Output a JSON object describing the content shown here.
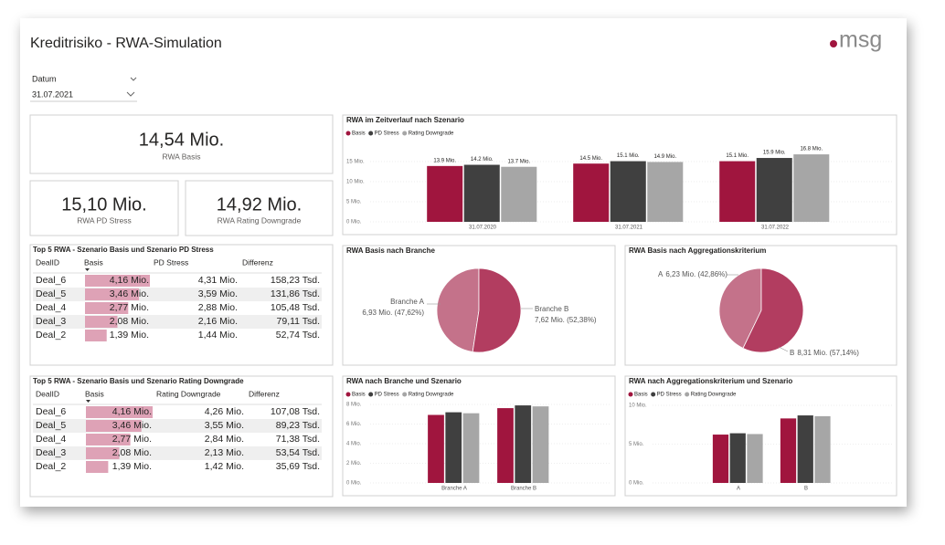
{
  "header": {
    "title": "Kreditrisiko - RWA-Simulation",
    "logo": "msg"
  },
  "filter": {
    "label": "Datum",
    "value": "31.07.2021"
  },
  "cards": [
    {
      "value": "14,54 Mio.",
      "label": "RWA Basis"
    },
    {
      "value": "15,10 Mio.",
      "label": "RWA PD Stress"
    },
    {
      "value": "14,92 Mio.",
      "label": "RWA Rating Downgrade"
    }
  ],
  "tables": [
    {
      "title": "Top 5 RWA - Szenario Basis und Szenario PD Stress",
      "columns": [
        "DealID",
        "Basis",
        "PD Stress",
        "Differenz"
      ],
      "bar_color": "#dea2b6",
      "rows": [
        [
          "Deal_6",
          {
            "value": 4.16,
            "label": "4,16 Mio."
          },
          "4,31 Mio.",
          "158,23 Tsd."
        ],
        [
          "Deal_5",
          {
            "value": 3.46,
            "label": "3,46 Mio."
          },
          "3,59 Mio.",
          "131,86 Tsd."
        ],
        [
          "Deal_4",
          {
            "value": 2.77,
            "label": "2,77 Mio."
          },
          "2,88 Mio.",
          "105,48 Tsd."
        ],
        [
          "Deal_3",
          {
            "value": 2.08,
            "label": "2,08 Mio."
          },
          "2,16 Mio.",
          "79,11 Tsd."
        ],
        [
          "Deal_2",
          {
            "value": 1.39,
            "label": "1,39 Mio."
          },
          "1,44 Mio.",
          "52,74 Tsd."
        ]
      ]
    },
    {
      "title": "Top 5 RWA - Szenario Basis und Szenario Rating Downgrade",
      "columns": [
        "DealID",
        "Basis",
        "Rating Downgrade",
        "Differenz"
      ],
      "bar_color": "#dea2b6",
      "rows": [
        [
          "Deal_6",
          {
            "value": 4.16,
            "label": "4,16 Mio."
          },
          "4,26 Mio.",
          "107,08 Tsd."
        ],
        [
          "Deal_5",
          {
            "value": 3.46,
            "label": "3,46 Mio."
          },
          "3,55 Mio.",
          "89,23 Tsd."
        ],
        [
          "Deal_4",
          {
            "value": 2.77,
            "label": "2,77 Mio."
          },
          "2,84 Mio.",
          "71,38 Tsd."
        ],
        [
          "Deal_3",
          {
            "value": 2.08,
            "label": "2,08 Mio."
          },
          "2,13 Mio.",
          "53,54 Tsd."
        ],
        [
          "Deal_2",
          {
            "value": 1.39,
            "label": "1,39 Mio."
          },
          "1,42 Mio.",
          "35,69 Tsd."
        ]
      ]
    }
  ],
  "charts": [
    {
      "type": "bar",
      "title": "RWA im Zeitverlauf nach Szenario",
      "categories": [
        "31.07.2020",
        "31.07.2021",
        "31.07.2022"
      ],
      "series": [
        {
          "name": "Basis",
          "color": "#a0153e",
          "values": [
            13.9,
            14.5,
            15.1
          ],
          "value_labels": [
            "13.9 Mio.",
            "14.5 Mio.",
            "15.1 Mio."
          ]
        },
        {
          "name": "PD Stress",
          "color": "#404040",
          "values": [
            14.2,
            15.1,
            15.9
          ],
          "value_labels": [
            "14.2 Mio.",
            "15.1 Mio.",
            "15.9 Mio."
          ]
        },
        {
          "name": "Rating Downgrade",
          "color": "#a6a6a6",
          "values": [
            13.7,
            14.9,
            16.8
          ],
          "value_labels": [
            "13.7 Mio.",
            "14.9 Mio.",
            "16.8 Mio."
          ]
        }
      ],
      "ylim": [
        0,
        20
      ],
      "yticks": [
        {
          "value": 0,
          "label": "0 Mio."
        },
        {
          "value": 5,
          "label": "5 Mio."
        },
        {
          "value": 10,
          "label": "10 Mio."
        },
        {
          "value": 15,
          "label": "15 Mio."
        }
      ],
      "grid": true
    },
    {
      "type": "pie",
      "title": "RWA Basis nach Branche",
      "categories": [
        "Branche A",
        "Branche B"
      ],
      "values": [
        6.93,
        7.62
      ],
      "value_labels": [
        "6,93 Mio. (47,62%)",
        "7,62 Mio. (52,38%)"
      ],
      "colors": [
        "#c4728a",
        "#b23d60"
      ]
    },
    {
      "type": "pie",
      "title": "RWA Basis nach Aggregationskriterium",
      "categories": [
        "A",
        "B"
      ],
      "values": [
        6.23,
        8.31
      ],
      "value_labels": [
        "6,23 Mio. (42,86%)",
        "8,31 Mio. (57,14%)"
      ],
      "colors": [
        "#c4728a",
        "#b23d60"
      ]
    },
    {
      "type": "bar",
      "title": "RWA nach Branche und Szenario",
      "categories": [
        "Branche A",
        "Branche B"
      ],
      "series": [
        {
          "name": "Basis",
          "color": "#a0153e",
          "values": [
            6.93,
            7.62
          ]
        },
        {
          "name": "PD Stress",
          "color": "#404040",
          "values": [
            7.2,
            7.9
          ]
        },
        {
          "name": "Rating Downgrade",
          "color": "#a6a6a6",
          "values": [
            7.1,
            7.8
          ]
        }
      ],
      "ylim": [
        0,
        8
      ],
      "yticks": [
        {
          "value": 0,
          "label": "0 Mio."
        },
        {
          "value": 2,
          "label": "2 Mio."
        },
        {
          "value": 4,
          "label": "4 Mio."
        },
        {
          "value": 6,
          "label": "6 Mio."
        },
        {
          "value": 8,
          "label": "8 Mio."
        }
      ],
      "grid": true
    },
    {
      "type": "bar",
      "title": "RWA nach Aggregationskriterium und Szenario",
      "categories": [
        "A",
        "B"
      ],
      "series": [
        {
          "name": "Basis",
          "color": "#a0153e",
          "values": [
            6.23,
            8.31
          ]
        },
        {
          "name": "PD Stress",
          "color": "#404040",
          "values": [
            6.4,
            8.7
          ]
        },
        {
          "name": "Rating Downgrade",
          "color": "#a6a6a6",
          "values": [
            6.3,
            8.6
          ]
        }
      ],
      "ylim": [
        0,
        10
      ],
      "yticks": [
        {
          "value": 0,
          "label": "0 Mio."
        },
        {
          "value": 5,
          "label": "5 Mio."
        },
        {
          "value": 10,
          "label": "10 Mio."
        }
      ],
      "grid": true
    }
  ]
}
